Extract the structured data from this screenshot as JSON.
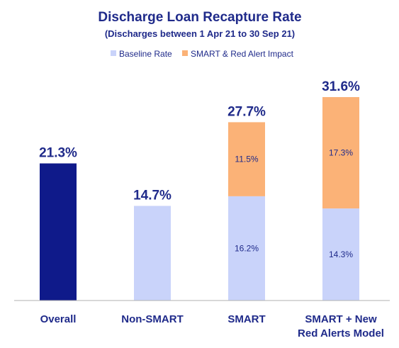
{
  "chart_data": {
    "type": "bar",
    "stacked": true,
    "title": "Discharge Loan Recapture Rate",
    "subtitle": "(Discharges between 1 Apr 21 to 30 Sep 21)",
    "categories": [
      [
        "Overall"
      ],
      [
        "Non-SMART"
      ],
      [
        "SMART"
      ],
      [
        "SMART + New",
        "Red Alerts Model"
      ]
    ],
    "series": [
      {
        "name": "Baseline Rate",
        "color": "#c9d3fa",
        "values": [
          21.3,
          14.7,
          16.2,
          14.3
        ],
        "labels": [
          "",
          "",
          "16.2%",
          "14.3%"
        ]
      },
      {
        "name": "SMART & Red Alert Impact",
        "color": "#fbb277",
        "values": [
          0,
          0,
          11.5,
          17.3
        ],
        "labels": [
          "",
          "",
          "11.5%",
          "17.3%"
        ]
      }
    ],
    "totals": [
      "21.3%",
      "14.7%",
      "27.7%",
      "31.6%"
    ],
    "overall_bar_color": "#0f1a8a",
    "ylim": [
      0,
      36
    ],
    "xlabel": "",
    "ylabel": "",
    "grid": false,
    "legend": "top-center"
  },
  "colors": {
    "text": "#1f2a8a",
    "axis": "#b0b0b0"
  }
}
